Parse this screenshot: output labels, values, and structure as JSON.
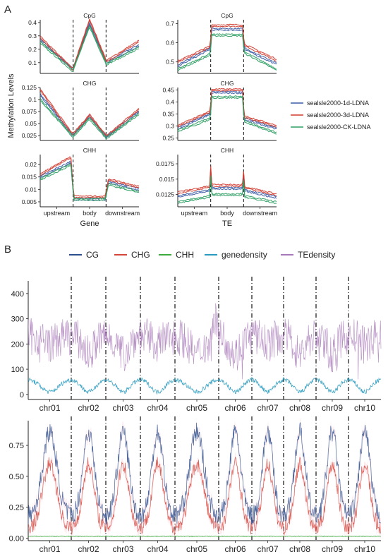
{
  "panel_a_label": "A",
  "panel_b_label": "B",
  "colors": {
    "sample_1d": "#3B5BA5",
    "sample_3d": "#D03A2E",
    "sample_ck": "#2E9E63",
    "CG": "#2B4F8C",
    "CHG": "#D4453A",
    "CHH": "#3DAA3D",
    "genedensity": "#2A9BBF",
    "TEdensity": "#A879B8",
    "band": "#F9C6D3"
  },
  "panel_a": {
    "ylabel": "Methylation Levels",
    "legend": [
      "sealsle2000-1d-LDNA",
      "sealsle2000-3d-LDNA",
      "sealsle2000-CK-LDNA"
    ],
    "gene_xlabel": "Gene",
    "te_xlabel": "TE",
    "xticks": [
      "upstream",
      "body",
      "downstream"
    ]
  },
  "panel_b": {
    "legend": [
      "CG",
      "CHG",
      "CHH",
      "genedensity",
      "TEdensity"
    ],
    "chromosomes": [
      "chr01",
      "chr02",
      "chr03",
      "chr04",
      "chr05",
      "chr06",
      "chr07",
      "chr08",
      "chr09",
      "chr10"
    ],
    "top_yticks": [
      "0",
      "100",
      "200",
      "300",
      "400"
    ],
    "bottom_yticks": [
      "0.00",
      "0.25",
      "0.50",
      "0.75"
    ]
  },
  "chart_data": [
    {
      "type": "line",
      "title": "CpG",
      "panel": "A-gene",
      "ylim": [
        0.02,
        0.42
      ],
      "yticks": [
        0.1,
        0.2,
        0.3,
        0.4
      ],
      "series": [
        {
          "name": "sealsle2000-1d-LDNA",
          "points": [
            [
              0,
              0.27
            ],
            [
              0.33,
              0.05
            ],
            [
              0.5,
              0.39
            ],
            [
              0.67,
              0.1
            ],
            [
              1,
              0.23
            ]
          ]
        },
        {
          "name": "sealsle2000-3d-LDNA",
          "points": [
            [
              0,
              0.29
            ],
            [
              0.33,
              0.05
            ],
            [
              0.5,
              0.42
            ],
            [
              0.67,
              0.11
            ],
            [
              1,
              0.26
            ]
          ]
        },
        {
          "name": "sealsle2000-CK-LDNA",
          "points": [
            [
              0,
              0.25
            ],
            [
              0.33,
              0.04
            ],
            [
              0.5,
              0.37
            ],
            [
              0.67,
              0.09
            ],
            [
              1,
              0.21
            ]
          ]
        }
      ]
    },
    {
      "type": "line",
      "title": "CpG",
      "panel": "A-TE",
      "ylim": [
        0.44,
        0.72
      ],
      "yticks": [
        0.5,
        0.6,
        0.7
      ],
      "series": [
        {
          "name": "sealsle2000-1d-LDNA",
          "points": [
            [
              0,
              0.48
            ],
            [
              0.33,
              0.57
            ],
            [
              0.34,
              0.67
            ],
            [
              0.66,
              0.67
            ],
            [
              0.67,
              0.57
            ],
            [
              1,
              0.49
            ]
          ]
        },
        {
          "name": "sealsle2000-3d-LDNA",
          "points": [
            [
              0,
              0.5
            ],
            [
              0.33,
              0.58
            ],
            [
              0.34,
              0.69
            ],
            [
              0.66,
              0.69
            ],
            [
              0.67,
              0.59
            ],
            [
              1,
              0.51
            ]
          ]
        },
        {
          "name": "sealsle2000-CK-LDNA",
          "points": [
            [
              0,
              0.46
            ],
            [
              0.33,
              0.54
            ],
            [
              0.34,
              0.64
            ],
            [
              0.66,
              0.64
            ],
            [
              0.67,
              0.55
            ],
            [
              1,
              0.46
            ]
          ]
        }
      ]
    },
    {
      "type": "line",
      "title": "CHG",
      "panel": "A-gene",
      "ylim": [
        0.015,
        0.125
      ],
      "yticks": [
        0.025,
        0.05,
        0.075,
        0.1,
        0.125
      ],
      "series": [
        {
          "name": "sealsle2000-1d-LDNA",
          "points": [
            [
              0,
              0.11
            ],
            [
              0.33,
              0.025
            ],
            [
              0.5,
              0.065
            ],
            [
              0.67,
              0.022
            ],
            [
              1,
              0.075
            ]
          ]
        },
        {
          "name": "sealsle2000-3d-LDNA",
          "points": [
            [
              0,
              0.12
            ],
            [
              0.33,
              0.027
            ],
            [
              0.5,
              0.068
            ],
            [
              0.67,
              0.024
            ],
            [
              1,
              0.08
            ]
          ]
        },
        {
          "name": "sealsle2000-CK-LDNA",
          "points": [
            [
              0,
              0.1
            ],
            [
              0.33,
              0.023
            ],
            [
              0.5,
              0.06
            ],
            [
              0.67,
              0.02
            ],
            [
              1,
              0.07
            ]
          ]
        }
      ]
    },
    {
      "type": "line",
      "title": "CHG",
      "panel": "A-TE",
      "ylim": [
        0.24,
        0.46
      ],
      "yticks": [
        0.25,
        0.3,
        0.35,
        0.4,
        0.45
      ],
      "series": [
        {
          "name": "sealsle2000-1d-LDNA",
          "points": [
            [
              0,
              0.29
            ],
            [
              0.33,
              0.35
            ],
            [
              0.34,
              0.44
            ],
            [
              0.66,
              0.44
            ],
            [
              0.67,
              0.33
            ],
            [
              1,
              0.29
            ]
          ]
        },
        {
          "name": "sealsle2000-3d-LDNA",
          "points": [
            [
              0,
              0.3
            ],
            [
              0.33,
              0.36
            ],
            [
              0.34,
              0.45
            ],
            [
              0.66,
              0.45
            ],
            [
              0.67,
              0.34
            ],
            [
              1,
              0.3
            ]
          ]
        },
        {
          "name": "sealsle2000-CK-LDNA",
          "points": [
            [
              0,
              0.28
            ],
            [
              0.33,
              0.33
            ],
            [
              0.34,
              0.42
            ],
            [
              0.66,
              0.42
            ],
            [
              0.67,
              0.32
            ],
            [
              1,
              0.27
            ]
          ]
        }
      ]
    },
    {
      "type": "line",
      "title": "CHH",
      "panel": "A-gene",
      "ylim": [
        0.003,
        0.024
      ],
      "yticks": [
        0.005,
        0.01,
        0.015,
        0.02
      ],
      "series": [
        {
          "name": "sealsle2000-1d-LDNA",
          "points": [
            [
              0,
              0.015
            ],
            [
              0.31,
              0.021
            ],
            [
              0.34,
              0.006
            ],
            [
              0.66,
              0.006
            ],
            [
              0.69,
              0.013
            ],
            [
              1,
              0.01
            ]
          ]
        },
        {
          "name": "sealsle2000-3d-LDNA",
          "points": [
            [
              0,
              0.016
            ],
            [
              0.31,
              0.023
            ],
            [
              0.34,
              0.007
            ],
            [
              0.66,
              0.007
            ],
            [
              0.69,
              0.014
            ],
            [
              1,
              0.011
            ]
          ]
        },
        {
          "name": "sealsle2000-CK-LDNA",
          "points": [
            [
              0,
              0.014
            ],
            [
              0.31,
              0.02
            ],
            [
              0.34,
              0.006
            ],
            [
              0.66,
              0.006
            ],
            [
              0.69,
              0.012
            ],
            [
              1,
              0.009
            ]
          ]
        }
      ]
    },
    {
      "type": "line",
      "title": "CHH",
      "panel": "A-TE",
      "ylim": [
        0.0105,
        0.019
      ],
      "yticks": [
        0.0125,
        0.015,
        0.0175
      ],
      "series": [
        {
          "name": "sealsle2000-1d-LDNA",
          "points": [
            [
              0,
              0.0122
            ],
            [
              0.33,
              0.0132
            ],
            [
              0.335,
              0.018
            ],
            [
              0.345,
              0.0135
            ],
            [
              0.655,
              0.0135
            ],
            [
              0.665,
              0.017
            ],
            [
              0.67,
              0.0132
            ],
            [
              1,
              0.012
            ]
          ]
        },
        {
          "name": "sealsle2000-3d-LDNA",
          "points": [
            [
              0,
              0.0128
            ],
            [
              0.33,
              0.0138
            ],
            [
              0.335,
              0.0185
            ],
            [
              0.345,
              0.014
            ],
            [
              0.655,
              0.014
            ],
            [
              0.665,
              0.0175
            ],
            [
              0.67,
              0.0137
            ],
            [
              1,
              0.0125
            ]
          ]
        },
        {
          "name": "sealsle2000-CK-LDNA",
          "points": [
            [
              0,
              0.0112
            ],
            [
              0.33,
              0.0122
            ],
            [
              0.335,
              0.017
            ],
            [
              0.345,
              0.0125
            ],
            [
              0.655,
              0.0125
            ],
            [
              0.665,
              0.016
            ],
            [
              0.67,
              0.0122
            ],
            [
              1,
              0.0112
            ]
          ]
        }
      ]
    },
    {
      "type": "line",
      "panel": "B-top",
      "ylim": [
        -20,
        450
      ],
      "series": [
        {
          "name": "TEdensity",
          "baseline": 230,
          "range": [
            60,
            450
          ]
        },
        {
          "name": "genedensity",
          "baseline": 35,
          "range": [
            0,
            70
          ]
        }
      ]
    },
    {
      "type": "line",
      "panel": "B-bottom",
      "ylim": [
        -0.02,
        0.95
      ],
      "series": [
        {
          "name": "CG",
          "arm": 0.15,
          "center": 0.85
        },
        {
          "name": "CHG",
          "arm": 0.08,
          "center": 0.58
        },
        {
          "name": "CHH",
          "arm": 0.02,
          "center": 0.02
        }
      ]
    }
  ]
}
